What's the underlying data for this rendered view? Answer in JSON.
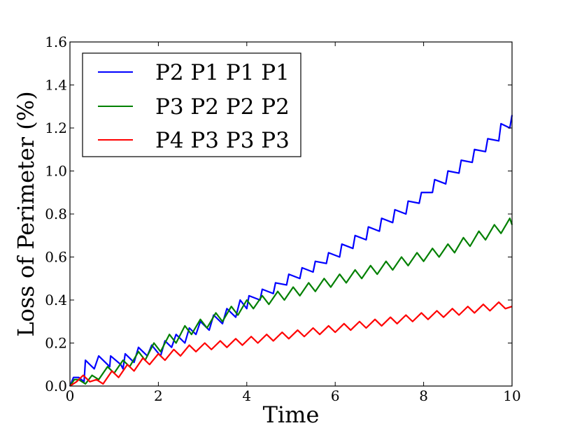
{
  "chart_data": {
    "type": "line",
    "title": "",
    "xlabel": "Time",
    "ylabel": "Loss of Perimeter (%)",
    "xlim": [
      0,
      10
    ],
    "ylim": [
      0,
      1.6
    ],
    "xticks": [
      0,
      2,
      4,
      6,
      8,
      10
    ],
    "yticks": [
      0.0,
      0.2,
      0.4,
      0.6,
      0.8,
      1.0,
      1.2,
      1.4,
      1.6
    ],
    "xtick_labels": [
      "0",
      "2",
      "4",
      "6",
      "8",
      "10"
    ],
    "ytick_labels": [
      "0.0",
      "0.2",
      "0.4",
      "0.6",
      "0.8",
      "1.0",
      "1.2",
      "1.4",
      "1.6"
    ],
    "grid": false,
    "legend_position": "top-left",
    "series": [
      {
        "name": "P2 P1 P1 P1",
        "color": "#0000ff",
        "x": [
          0.0,
          0.08,
          0.2,
          0.32,
          0.35,
          0.55,
          0.65,
          0.9,
          0.92,
          1.15,
          1.2,
          1.25,
          1.45,
          1.55,
          1.75,
          1.85,
          2.05,
          2.15,
          2.3,
          2.4,
          2.6,
          2.7,
          2.85,
          2.95,
          3.15,
          3.25,
          3.45,
          3.55,
          3.75,
          3.85,
          4.0,
          4.05,
          4.3,
          4.35,
          4.6,
          4.65,
          4.9,
          4.95,
          5.2,
          5.25,
          5.5,
          5.55,
          5.8,
          5.85,
          6.1,
          6.15,
          6.4,
          6.45,
          6.7,
          6.75,
          7.0,
          7.05,
          7.3,
          7.35,
          7.6,
          7.65,
          7.9,
          7.95,
          8.2,
          8.25,
          8.5,
          8.55,
          8.8,
          8.85,
          9.1,
          9.15,
          9.4,
          9.45,
          9.7,
          9.75,
          9.95,
          10.0
        ],
        "y": [
          0.0,
          0.04,
          0.04,
          0.02,
          0.12,
          0.08,
          0.14,
          0.09,
          0.14,
          0.1,
          0.08,
          0.15,
          0.11,
          0.18,
          0.14,
          0.19,
          0.14,
          0.21,
          0.18,
          0.24,
          0.2,
          0.27,
          0.24,
          0.3,
          0.26,
          0.33,
          0.29,
          0.36,
          0.32,
          0.4,
          0.36,
          0.42,
          0.4,
          0.45,
          0.43,
          0.48,
          0.47,
          0.52,
          0.5,
          0.55,
          0.53,
          0.58,
          0.57,
          0.62,
          0.6,
          0.66,
          0.64,
          0.7,
          0.68,
          0.74,
          0.72,
          0.78,
          0.76,
          0.82,
          0.8,
          0.86,
          0.85,
          0.9,
          0.9,
          0.96,
          0.94,
          1.0,
          0.99,
          1.05,
          1.04,
          1.1,
          1.09,
          1.15,
          1.14,
          1.22,
          1.2,
          1.26
        ]
      },
      {
        "name": "P3 P2 P2 P2",
        "color": "#008000",
        "x": [
          0.0,
          0.1,
          0.2,
          0.35,
          0.5,
          0.65,
          0.85,
          1.0,
          1.2,
          1.35,
          1.55,
          1.7,
          1.9,
          2.05,
          2.25,
          2.4,
          2.6,
          2.75,
          2.95,
          3.1,
          3.3,
          3.45,
          3.65,
          3.8,
          4.0,
          4.15,
          4.35,
          4.5,
          4.7,
          4.85,
          5.05,
          5.2,
          5.4,
          5.55,
          5.75,
          5.9,
          6.1,
          6.25,
          6.45,
          6.6,
          6.8,
          6.95,
          7.15,
          7.3,
          7.5,
          7.65,
          7.85,
          8.0,
          8.2,
          8.35,
          8.55,
          8.7,
          8.9,
          9.05,
          9.25,
          9.4,
          9.6,
          9.75,
          9.95,
          10.0
        ],
        "y": [
          0.0,
          0.03,
          0.03,
          0.01,
          0.05,
          0.03,
          0.09,
          0.06,
          0.12,
          0.09,
          0.16,
          0.12,
          0.2,
          0.16,
          0.24,
          0.2,
          0.28,
          0.24,
          0.31,
          0.27,
          0.34,
          0.3,
          0.37,
          0.33,
          0.4,
          0.36,
          0.42,
          0.38,
          0.44,
          0.4,
          0.46,
          0.42,
          0.48,
          0.44,
          0.5,
          0.46,
          0.52,
          0.48,
          0.54,
          0.5,
          0.56,
          0.52,
          0.58,
          0.54,
          0.6,
          0.56,
          0.62,
          0.58,
          0.64,
          0.6,
          0.66,
          0.62,
          0.69,
          0.65,
          0.72,
          0.68,
          0.75,
          0.71,
          0.78,
          0.75
        ]
      },
      {
        "name": "P4 P3 P3 P3",
        "color": "#ff0000",
        "x": [
          0.0,
          0.15,
          0.3,
          0.45,
          0.6,
          0.75,
          0.95,
          1.1,
          1.3,
          1.45,
          1.65,
          1.8,
          2.0,
          2.15,
          2.35,
          2.5,
          2.7,
          2.85,
          3.05,
          3.2,
          3.4,
          3.55,
          3.75,
          3.9,
          4.1,
          4.25,
          4.45,
          4.6,
          4.8,
          4.95,
          5.15,
          5.3,
          5.5,
          5.65,
          5.85,
          6.0,
          6.2,
          6.35,
          6.55,
          6.7,
          6.9,
          7.05,
          7.25,
          7.4,
          7.6,
          7.75,
          7.95,
          8.1,
          8.3,
          8.45,
          8.65,
          8.8,
          9.0,
          9.15,
          9.35,
          9.5,
          9.7,
          9.85,
          10.0
        ],
        "y": [
          0.0,
          0.02,
          0.05,
          0.02,
          0.03,
          0.01,
          0.07,
          0.04,
          0.1,
          0.07,
          0.13,
          0.1,
          0.15,
          0.12,
          0.17,
          0.14,
          0.19,
          0.16,
          0.2,
          0.17,
          0.21,
          0.18,
          0.22,
          0.19,
          0.23,
          0.2,
          0.24,
          0.21,
          0.25,
          0.22,
          0.26,
          0.23,
          0.27,
          0.24,
          0.28,
          0.25,
          0.29,
          0.26,
          0.3,
          0.27,
          0.31,
          0.28,
          0.32,
          0.29,
          0.33,
          0.3,
          0.34,
          0.31,
          0.35,
          0.32,
          0.36,
          0.33,
          0.37,
          0.34,
          0.38,
          0.35,
          0.39,
          0.36,
          0.37
        ]
      }
    ]
  }
}
